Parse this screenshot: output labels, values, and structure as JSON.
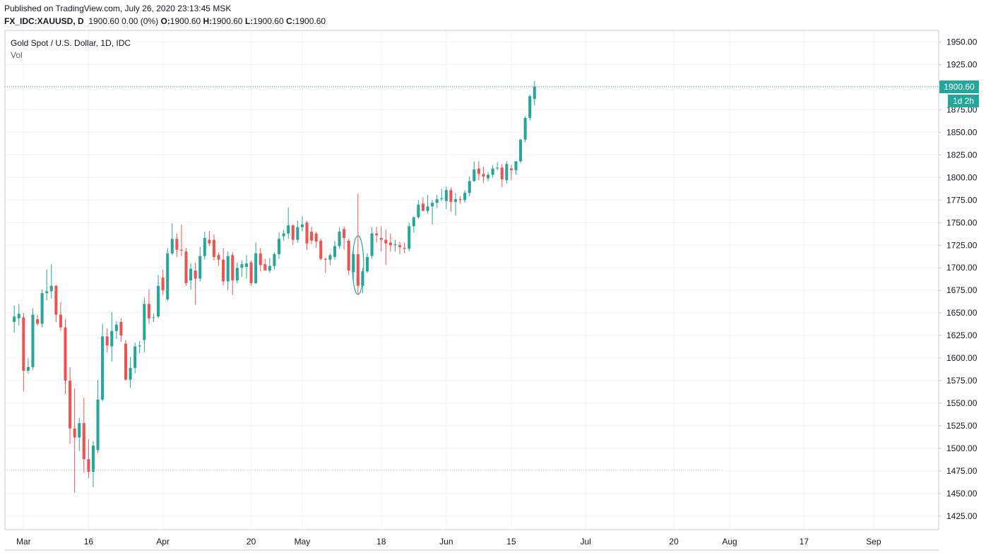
{
  "header": {
    "published": "Published on TradingView.com, July 26, 2020 23:13:45 MSK",
    "symbol": "FX_IDC:XAUUSD, D",
    "change": "1900.60 0.00 (0%)",
    "o_label": "O:",
    "o_value": "1900.60",
    "h_label": "H:",
    "h_value": "1900.60",
    "l_label": "L:",
    "l_value": "1900.60",
    "c_label": "C:",
    "c_value": "1900.60"
  },
  "legend": {
    "title": "Gold Spot / U.S. Dollar, 1D, IDC",
    "volume": "Vol"
  },
  "colors": {
    "up": "#26a69a",
    "down": "#ef5350",
    "grid": "#f0f3fa",
    "axis_text": "#131722",
    "price_line": "#26a69a"
  },
  "price_label": {
    "value": "1900.60",
    "countdown": "1d 2h"
  },
  "chart_data": {
    "type": "candlestick",
    "y_range": [
      1410,
      1963
    ],
    "y_ticks": [
      1425,
      1450,
      1475,
      1500,
      1525,
      1550,
      1575,
      1600,
      1625,
      1650,
      1675,
      1700,
      1725,
      1750,
      1775,
      1800,
      1825,
      1850,
      1875,
      1900,
      1925,
      1950
    ],
    "y_tick_labels": [
      "1425.00",
      "1450.00",
      "1475.00",
      "1500.00",
      "1525.00",
      "1550.00",
      "1575.00",
      "1600.00",
      "1625.00",
      "1650.00",
      "1675.00",
      "1700.00",
      "1725.00",
      "1750.00",
      "1775.00",
      "1800.00",
      "1825.00",
      "1850.00",
      "1875.00",
      "1900.00",
      "1925.00",
      "1950.00"
    ],
    "x_ticks": [
      {
        "label": "Mar",
        "day": 2
      },
      {
        "label": "16",
        "day": 16
      },
      {
        "label": "Apr",
        "day": 32
      },
      {
        "label": "20",
        "day": 51
      },
      {
        "label": "May",
        "day": 62
      },
      {
        "label": "18",
        "day": 79
      },
      {
        "label": "Jun",
        "day": 93
      },
      {
        "label": "15",
        "day": 107
      },
      {
        "label": "Jul",
        "day": 123
      },
      {
        "label": "20",
        "day": 142
      },
      {
        "label": "Aug",
        "day": 154
      },
      {
        "label": "17",
        "day": 170
      },
      {
        "label": "Sep",
        "day": 185
      }
    ],
    "x_range": [
      -2,
      199
    ],
    "candles": [
      {
        "day": 0,
        "o": 1640,
        "h": 1658,
        "l": 1628,
        "c": 1646
      },
      {
        "day": 1,
        "o": 1644,
        "h": 1660,
        "l": 1636,
        "c": 1649
      },
      {
        "day": 2,
        "o": 1645,
        "h": 1650,
        "l": 1563,
        "c": 1586
      },
      {
        "day": 3,
        "o": 1586,
        "h": 1600,
        "l": 1583,
        "c": 1590
      },
      {
        "day": 4,
        "o": 1590,
        "h": 1655,
        "l": 1587,
        "c": 1648
      },
      {
        "day": 5,
        "o": 1643,
        "h": 1648,
        "l": 1636,
        "c": 1638
      },
      {
        "day": 6,
        "o": 1638,
        "h": 1676,
        "l": 1634,
        "c": 1672
      },
      {
        "day": 7,
        "o": 1672,
        "h": 1698,
        "l": 1664,
        "c": 1674
      },
      {
        "day": 8,
        "o": 1674,
        "h": 1704,
        "l": 1666,
        "c": 1680
      },
      {
        "day": 9,
        "o": 1680,
        "h": 1681,
        "l": 1640,
        "c": 1648
      },
      {
        "day": 10,
        "o": 1648,
        "h": 1662,
        "l": 1630,
        "c": 1634
      },
      {
        "day": 11,
        "o": 1634,
        "h": 1643,
        "l": 1560,
        "c": 1575
      },
      {
        "day": 12,
        "o": 1575,
        "h": 1590,
        "l": 1505,
        "c": 1522
      },
      {
        "day": 13,
        "o": 1522,
        "h": 1566,
        "l": 1451,
        "c": 1512
      },
      {
        "day": 14,
        "o": 1512,
        "h": 1534,
        "l": 1497,
        "c": 1528
      },
      {
        "day": 15,
        "o": 1528,
        "h": 1556,
        "l": 1473,
        "c": 1488
      },
      {
        "day": 16,
        "o": 1488,
        "h": 1510,
        "l": 1467,
        "c": 1474
      },
      {
        "day": 17,
        "o": 1474,
        "h": 1508,
        "l": 1457,
        "c": 1503
      },
      {
        "day": 18,
        "o": 1498,
        "h": 1576,
        "l": 1495,
        "c": 1554
      },
      {
        "day": 19,
        "o": 1554,
        "h": 1638,
        "l": 1552,
        "c": 1624
      },
      {
        "day": 20,
        "o": 1624,
        "h": 1633,
        "l": 1606,
        "c": 1614
      },
      {
        "day": 21,
        "o": 1613,
        "h": 1651,
        "l": 1596,
        "c": 1630
      },
      {
        "day": 22,
        "o": 1630,
        "h": 1641,
        "l": 1621,
        "c": 1637
      },
      {
        "day": 23,
        "o": 1640,
        "h": 1644,
        "l": 1618,
        "c": 1625
      },
      {
        "day": 24,
        "o": 1616,
        "h": 1620,
        "l": 1575,
        "c": 1576
      },
      {
        "day": 25,
        "o": 1576,
        "h": 1601,
        "l": 1567,
        "c": 1589
      },
      {
        "day": 26,
        "o": 1589,
        "h": 1617,
        "l": 1583,
        "c": 1613
      },
      {
        "day": 27,
        "o": 1613,
        "h": 1619,
        "l": 1605,
        "c": 1614
      },
      {
        "day": 28,
        "o": 1620,
        "h": 1667,
        "l": 1607,
        "c": 1660
      },
      {
        "day": 29,
        "o": 1660,
        "h": 1676,
        "l": 1638,
        "c": 1644
      },
      {
        "day": 30,
        "o": 1645,
        "h": 1649,
        "l": 1640,
        "c": 1645
      },
      {
        "day": 31,
        "o": 1646,
        "h": 1692,
        "l": 1644,
        "c": 1680
      },
      {
        "day": 32,
        "o": 1689,
        "h": 1698,
        "l": 1670,
        "c": 1675
      },
      {
        "day": 33,
        "o": 1665,
        "h": 1722,
        "l": 1663,
        "c": 1716
      },
      {
        "day": 34,
        "o": 1716,
        "h": 1749,
        "l": 1714,
        "c": 1732
      },
      {
        "day": 35,
        "o": 1732,
        "h": 1738,
        "l": 1712,
        "c": 1720
      },
      {
        "day": 36,
        "o": 1720,
        "h": 1748,
        "l": 1713,
        "c": 1719
      },
      {
        "day": 37,
        "o": 1718,
        "h": 1722,
        "l": 1680,
        "c": 1683
      },
      {
        "day": 38,
        "o": 1686,
        "h": 1705,
        "l": 1676,
        "c": 1699
      },
      {
        "day": 39,
        "o": 1697,
        "h": 1706,
        "l": 1659,
        "c": 1688
      },
      {
        "day": 40,
        "o": 1688,
        "h": 1723,
        "l": 1685,
        "c": 1713
      },
      {
        "day": 41,
        "o": 1713,
        "h": 1740,
        "l": 1709,
        "c": 1733
      },
      {
        "day": 42,
        "o": 1731,
        "h": 1741,
        "l": 1724,
        "c": 1727
      },
      {
        "day": 43,
        "o": 1731,
        "h": 1737,
        "l": 1708,
        "c": 1712
      },
      {
        "day": 44,
        "o": 1714,
        "h": 1717,
        "l": 1702,
        "c": 1709
      },
      {
        "day": 45,
        "o": 1709,
        "h": 1722,
        "l": 1680,
        "c": 1685
      },
      {
        "day": 46,
        "o": 1685,
        "h": 1718,
        "l": 1675,
        "c": 1713
      },
      {
        "day": 47,
        "o": 1714,
        "h": 1717,
        "l": 1670,
        "c": 1686
      },
      {
        "day": 48,
        "o": 1686,
        "h": 1706,
        "l": 1683,
        "c": 1700
      },
      {
        "day": 49,
        "o": 1700,
        "h": 1708,
        "l": 1690,
        "c": 1704
      },
      {
        "day": 50,
        "o": 1701,
        "h": 1714,
        "l": 1688,
        "c": 1705
      },
      {
        "day": 51,
        "o": 1706,
        "h": 1708,
        "l": 1680,
        "c": 1683
      },
      {
        "day": 52,
        "o": 1683,
        "h": 1728,
        "l": 1682,
        "c": 1716
      },
      {
        "day": 53,
        "o": 1716,
        "h": 1722,
        "l": 1696,
        "c": 1703
      },
      {
        "day": 54,
        "o": 1704,
        "h": 1710,
        "l": 1697,
        "c": 1697
      },
      {
        "day": 55,
        "o": 1697,
        "h": 1711,
        "l": 1694,
        "c": 1702
      },
      {
        "day": 56,
        "o": 1702,
        "h": 1717,
        "l": 1698,
        "c": 1715
      },
      {
        "day": 57,
        "o": 1715,
        "h": 1739,
        "l": 1710,
        "c": 1732
      },
      {
        "day": 58,
        "o": 1735,
        "h": 1742,
        "l": 1730,
        "c": 1738
      },
      {
        "day": 59,
        "o": 1738,
        "h": 1767,
        "l": 1732,
        "c": 1747
      },
      {
        "day": 60,
        "o": 1747,
        "h": 1748,
        "l": 1725,
        "c": 1731
      },
      {
        "day": 61,
        "o": 1731,
        "h": 1752,
        "l": 1728,
        "c": 1745
      },
      {
        "day": 62,
        "o": 1745,
        "h": 1757,
        "l": 1740,
        "c": 1748
      },
      {
        "day": 63,
        "o": 1750,
        "h": 1752,
        "l": 1720,
        "c": 1727
      },
      {
        "day": 64,
        "o": 1740,
        "h": 1745,
        "l": 1726,
        "c": 1730
      },
      {
        "day": 65,
        "o": 1738,
        "h": 1740,
        "l": 1722,
        "c": 1729
      },
      {
        "day": 66,
        "o": 1730,
        "h": 1732,
        "l": 1708,
        "c": 1710
      },
      {
        "day": 67,
        "o": 1710,
        "h": 1711,
        "l": 1694,
        "c": 1709
      },
      {
        "day": 68,
        "o": 1709,
        "h": 1716,
        "l": 1703,
        "c": 1714
      },
      {
        "day": 69,
        "o": 1712,
        "h": 1730,
        "l": 1709,
        "c": 1724
      },
      {
        "day": 70,
        "o": 1724,
        "h": 1745,
        "l": 1721,
        "c": 1740
      },
      {
        "day": 71,
        "o": 1743,
        "h": 1746,
        "l": 1720,
        "c": 1733
      },
      {
        "day": 72,
        "o": 1730,
        "h": 1732,
        "l": 1692,
        "c": 1697
      },
      {
        "day": 73,
        "o": 1695,
        "h": 1720,
        "l": 1686,
        "c": 1715
      },
      {
        "day": 74,
        "o": 1715,
        "h": 1782,
        "l": 1670,
        "c": 1680
      },
      {
        "day": 75,
        "o": 1680,
        "h": 1700,
        "l": 1672,
        "c": 1696
      },
      {
        "day": 76,
        "o": 1696,
        "h": 1716,
        "l": 1694,
        "c": 1712
      },
      {
        "day": 77,
        "o": 1713,
        "h": 1745,
        "l": 1710,
        "c": 1738
      },
      {
        "day": 78,
        "o": 1738,
        "h": 1745,
        "l": 1728,
        "c": 1736
      },
      {
        "day": 79,
        "o": 1733,
        "h": 1746,
        "l": 1718,
        "c": 1731
      },
      {
        "day": 80,
        "o": 1731,
        "h": 1742,
        "l": 1703,
        "c": 1727
      },
      {
        "day": 81,
        "o": 1728,
        "h": 1738,
        "l": 1718,
        "c": 1725
      },
      {
        "day": 82,
        "o": 1725,
        "h": 1731,
        "l": 1718,
        "c": 1726
      },
      {
        "day": 83,
        "o": 1725,
        "h": 1729,
        "l": 1715,
        "c": 1723
      },
      {
        "day": 84,
        "o": 1722,
        "h": 1728,
        "l": 1716,
        "c": 1721
      },
      {
        "day": 85,
        "o": 1721,
        "h": 1750,
        "l": 1718,
        "c": 1746
      },
      {
        "day": 86,
        "o": 1746,
        "h": 1757,
        "l": 1739,
        "c": 1756
      },
      {
        "day": 87,
        "o": 1756,
        "h": 1775,
        "l": 1754,
        "c": 1770
      },
      {
        "day": 88,
        "o": 1771,
        "h": 1778,
        "l": 1763,
        "c": 1763
      },
      {
        "day": 89,
        "o": 1763,
        "h": 1781,
        "l": 1760,
        "c": 1768
      },
      {
        "day": 90,
        "o": 1768,
        "h": 1775,
        "l": 1748,
        "c": 1772
      },
      {
        "day": 91,
        "o": 1772,
        "h": 1781,
        "l": 1766,
        "c": 1776
      },
      {
        "day": 92,
        "o": 1776,
        "h": 1787,
        "l": 1774,
        "c": 1777
      },
      {
        "day": 93,
        "o": 1774,
        "h": 1790,
        "l": 1765,
        "c": 1786
      },
      {
        "day": 94,
        "o": 1786,
        "h": 1789,
        "l": 1762,
        "c": 1773
      },
      {
        "day": 95,
        "o": 1773,
        "h": 1783,
        "l": 1758,
        "c": 1776
      },
      {
        "day": 96,
        "o": 1776,
        "h": 1779,
        "l": 1771,
        "c": 1775
      },
      {
        "day": 97,
        "o": 1775,
        "h": 1786,
        "l": 1772,
        "c": 1783
      },
      {
        "day": 98,
        "o": 1783,
        "h": 1801,
        "l": 1779,
        "c": 1796
      },
      {
        "day": 99,
        "o": 1796,
        "h": 1818,
        "l": 1795,
        "c": 1809
      },
      {
        "day": 100,
        "o": 1810,
        "h": 1818,
        "l": 1797,
        "c": 1804
      },
      {
        "day": 101,
        "o": 1804,
        "h": 1812,
        "l": 1794,
        "c": 1801
      },
      {
        "day": 102,
        "o": 1799,
        "h": 1806,
        "l": 1796,
        "c": 1803
      },
      {
        "day": 103,
        "o": 1803,
        "h": 1814,
        "l": 1800,
        "c": 1810
      },
      {
        "day": 104,
        "o": 1810,
        "h": 1817,
        "l": 1808,
        "c": 1811
      },
      {
        "day": 105,
        "o": 1811,
        "h": 1815,
        "l": 1789,
        "c": 1798
      },
      {
        "day": 106,
        "o": 1797,
        "h": 1818,
        "l": 1793,
        "c": 1815
      },
      {
        "day": 107,
        "o": 1810,
        "h": 1814,
        "l": 1797,
        "c": 1808
      },
      {
        "day": 108,
        "o": 1808,
        "h": 1818,
        "l": 1803,
        "c": 1818
      },
      {
        "day": 109,
        "o": 1818,
        "h": 1843,
        "l": 1816,
        "c": 1842
      },
      {
        "day": 110,
        "o": 1842,
        "h": 1868,
        "l": 1839,
        "c": 1866
      },
      {
        "day": 111,
        "o": 1866,
        "h": 1892,
        "l": 1863,
        "c": 1890
      },
      {
        "day": 112,
        "o": 1887,
        "h": 1907,
        "l": 1880,
        "c": 1900.6
      }
    ]
  }
}
